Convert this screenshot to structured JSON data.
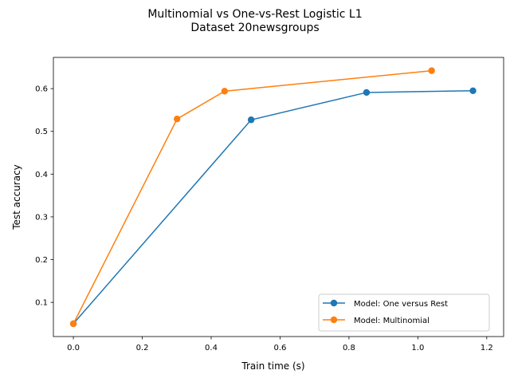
{
  "chart_data": {
    "type": "line",
    "title": "Multinomial vs One-vs-Rest Logistic L1",
    "subtitle": "Dataset 20newsgroups",
    "xlabel": "Train time (s)",
    "ylabel": "Test accuracy",
    "xlim": [
      -0.058,
      1.249
    ],
    "ylim": [
      0.02,
      0.673
    ],
    "xticks": [
      0.0,
      0.2,
      0.4,
      0.6,
      0.8,
      1.0,
      1.2
    ],
    "xtick_labels": [
      "0.0",
      "0.2",
      "0.4",
      "0.6",
      "0.8",
      "1.0",
      "1.2"
    ],
    "yticks": [
      0.1,
      0.2,
      0.3,
      0.4,
      0.5,
      0.6
    ],
    "ytick_labels": [
      "0.1",
      "0.2",
      "0.3",
      "0.4",
      "0.5",
      "0.6"
    ],
    "grid": false,
    "legend_position": "bottom-right",
    "series": [
      {
        "name": "Model: One versus Rest",
        "color": "#1f77b4",
        "x": [
          0.0,
          0.516,
          0.851,
          1.16
        ],
        "y": [
          0.05,
          0.527,
          0.591,
          0.595
        ]
      },
      {
        "name": "Model: Multinomial",
        "color": "#ff7f0e",
        "x": [
          0.0,
          0.301,
          0.439,
          1.04
        ],
        "y": [
          0.05,
          0.529,
          0.594,
          0.642
        ]
      }
    ]
  }
}
